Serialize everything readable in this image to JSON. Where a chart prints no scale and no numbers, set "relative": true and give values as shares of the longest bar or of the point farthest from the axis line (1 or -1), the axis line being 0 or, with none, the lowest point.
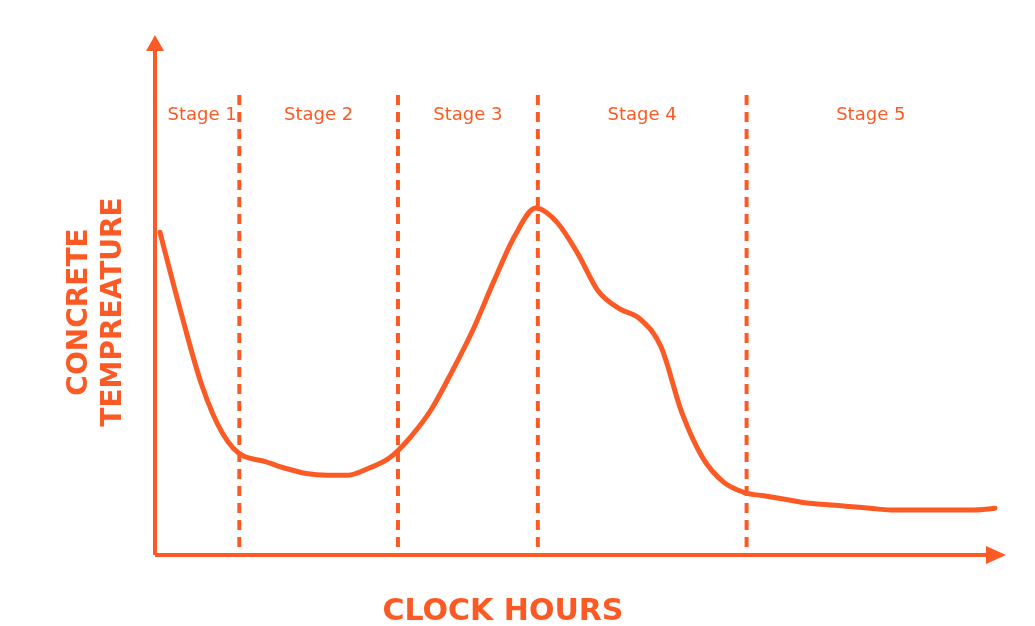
{
  "chart_data": {
    "type": "line",
    "relative": true,
    "xlabel": "CLOCK HOURS",
    "ylabel": "CONCRETE TEMPREATURE",
    "categories": [
      null,
      null,
      null,
      null,
      null,
      null,
      null,
      null,
      null,
      null,
      null,
      null,
      null,
      null,
      null,
      null,
      null,
      null,
      null,
      null,
      null,
      null,
      null,
      null,
      null,
      null,
      null,
      null,
      null,
      null,
      null,
      null,
      null,
      null,
      null,
      null,
      null,
      null,
      null,
      null,
      null
    ],
    "series": [
      {
        "color": "#fc5a24",
        "values": [
          0.93,
          0.7,
          0.49,
          0.35,
          0.285,
          0.27,
          0.25,
          0.235,
          0.23,
          0.23,
          0.25,
          0.28,
          0.34,
          0.42,
          0.53,
          0.65,
          0.79,
          0.92,
          1.0,
          0.96,
          0.87,
          0.76,
          0.71,
          0.68,
          0.6,
          0.41,
          0.28,
          0.21,
          0.18,
          0.17,
          0.16,
          0.15,
          0.145,
          0.14,
          0.135,
          0.13,
          0.13,
          0.13,
          0.13,
          0.13,
          0.135
        ]
      }
    ],
    "annotations": [
      "Stage 1",
      "Stage 2",
      "Stage 3",
      "Stage 4",
      "Stage 5"
    ],
    "grid": false,
    "marker": "none",
    "line_style": "solid"
  }
}
